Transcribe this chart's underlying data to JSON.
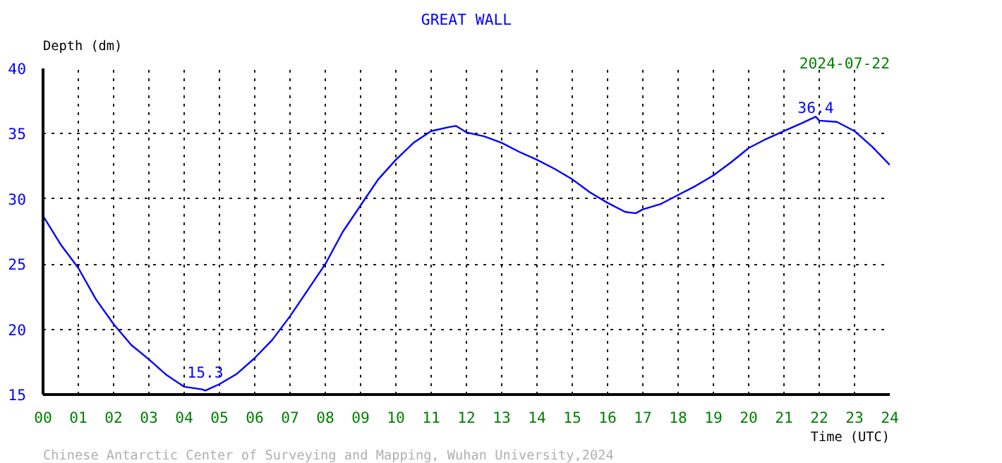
{
  "chart_data": {
    "type": "line",
    "title": "GREAT WALL",
    "xlabel": "Time (UTC)",
    "ylabel": "Depth (dm)",
    "x": [
      0,
      0.5,
      1,
      1.5,
      2,
      2.5,
      3,
      3.5,
      4,
      4.5,
      4.6,
      5,
      5.5,
      6,
      6.5,
      7,
      7.5,
      8,
      8.5,
      9,
      9.5,
      10,
      10.5,
      11,
      11.5,
      11.7,
      12,
      12.5,
      13,
      13.5,
      14,
      14.5,
      15,
      15.5,
      16,
      16.5,
      16.8,
      17,
      17.5,
      18,
      18.5,
      19,
      19.5,
      20,
      20.5,
      21,
      21.5,
      21.9,
      22,
      22.5,
      23,
      23.5,
      24
    ],
    "series": [
      {
        "color": "#0000ff",
        "values": [
          28.7,
          26.5,
          24.7,
          22.3,
          20.4,
          18.8,
          17.7,
          16.5,
          15.6,
          15.4,
          15.3,
          15.8,
          16.6,
          17.8,
          19.2,
          21,
          23,
          25,
          27.5,
          29.5,
          31.5,
          33,
          34.3,
          35.2,
          35.5,
          35.6,
          35.1,
          34.8,
          34.3,
          33.6,
          33,
          32.3,
          31.5,
          30.5,
          29.7,
          29,
          28.9,
          29.2,
          29.6,
          30.3,
          31,
          31.8,
          32.8,
          33.9,
          34.6,
          35.2,
          35.8,
          36.3,
          36,
          35.9,
          35.2,
          34,
          32.6
        ]
      }
    ],
    "xlim": [
      0,
      24
    ],
    "ylim": [
      15,
      40
    ],
    "xticks": [
      {
        "value": 0,
        "label": "00"
      },
      {
        "value": 1,
        "label": "01"
      },
      {
        "value": 2,
        "label": "02"
      },
      {
        "value": 3,
        "label": "03"
      },
      {
        "value": 4,
        "label": "04"
      },
      {
        "value": 5,
        "label": "05"
      },
      {
        "value": 6,
        "label": "06"
      },
      {
        "value": 7,
        "label": "07"
      },
      {
        "value": 8,
        "label": "08"
      },
      {
        "value": 9,
        "label": "09"
      },
      10,
      11,
      12,
      13,
      14,
      15,
      16,
      17,
      18,
      19,
      20,
      21,
      22,
      23,
      24
    ],
    "yticks": [
      15,
      20,
      25,
      30,
      35,
      40
    ],
    "grid": true,
    "line_style": "solid",
    "marker": "none",
    "annotations": [
      {
        "text": "36.4",
        "x": 21.9,
        "y": 36.4
      },
      {
        "text": "15.3",
        "x": 4.6,
        "y": 15.3
      },
      "2024-07-22",
      "Chinese Antarctic Center of Surveying and Mapping, Wuhan University,2024"
    ]
  }
}
